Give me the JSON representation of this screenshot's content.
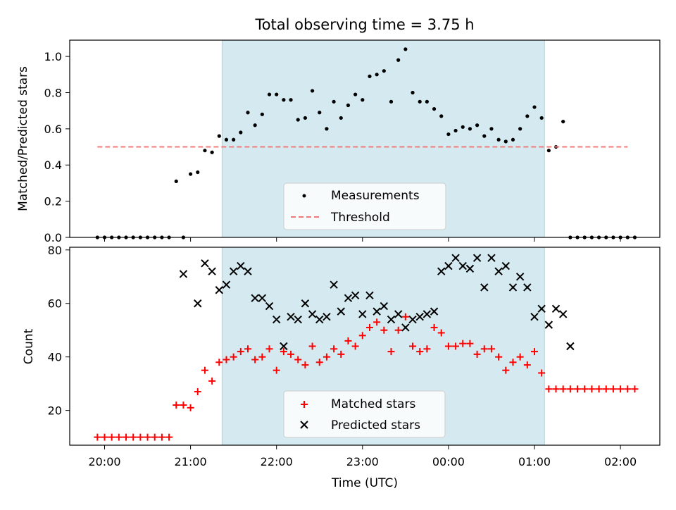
{
  "figure": {
    "title": "Total observing time = 3.75 h",
    "xlabel": "Time (UTC)",
    "x_ticks": [
      "20:00",
      "21:00",
      "22:00",
      "23:00",
      "00:00",
      "01:00",
      "02:00"
    ],
    "shade_color": "#d4eaf0",
    "shade_range": [
      "21:22",
      "01:07"
    ]
  },
  "chart_data": [
    {
      "type": "scatter",
      "ylabel": "Matched/Predicted stars",
      "ylim": [
        0,
        1.09
      ],
      "y_ticks": [
        "0.0",
        "0.2",
        "0.4",
        "0.6",
        "0.8",
        "1.0"
      ],
      "legend_placement": "lower center",
      "series": [
        {
          "name": "Measurements",
          "color": "#000000",
          "marker": "dot",
          "x": [
            "19:55",
            "20:00",
            "20:05",
            "20:10",
            "20:15",
            "20:20",
            "20:25",
            "20:30",
            "20:35",
            "20:40",
            "20:45",
            "20:50",
            "20:55",
            "21:00",
            "21:05",
            "21:10",
            "21:15",
            "21:20",
            "21:25",
            "21:30",
            "21:35",
            "21:40",
            "21:45",
            "21:50",
            "21:55",
            "22:00",
            "22:05",
            "22:10",
            "22:15",
            "22:20",
            "22:25",
            "22:30",
            "22:35",
            "22:40",
            "22:45",
            "22:50",
            "22:55",
            "23:00",
            "23:05",
            "23:10",
            "23:15",
            "23:20",
            "23:25",
            "23:30",
            "23:35",
            "23:40",
            "23:45",
            "23:50",
            "23:55",
            "00:00",
            "00:05",
            "00:10",
            "00:15",
            "00:20",
            "00:25",
            "00:30",
            "00:35",
            "00:40",
            "00:45",
            "00:50",
            "00:55",
            "01:00",
            "01:05",
            "01:10",
            "01:15",
            "01:20",
            "01:25",
            "01:30",
            "01:35",
            "01:40",
            "01:45",
            "01:50",
            "01:55",
            "02:00",
            "02:05",
            "02:10"
          ],
          "y": [
            0,
            0,
            0,
            0,
            0,
            0,
            0,
            0,
            0,
            0,
            0,
            0.31,
            0,
            0.35,
            0.36,
            0.48,
            0.47,
            0.56,
            0.54,
            0.54,
            0.58,
            0.69,
            0.62,
            0.68,
            0.79,
            0.79,
            0.76,
            0.76,
            0.65,
            0.66,
            0.81,
            0.69,
            0.6,
            0.75,
            0.66,
            0.73,
            0.79,
            0.76,
            0.89,
            0.9,
            0.92,
            0.75,
            0.98,
            1.04,
            0.8,
            0.75,
            0.75,
            0.71,
            0.67,
            0.57,
            0.59,
            0.61,
            0.6,
            0.62,
            0.56,
            0.6,
            0.54,
            0.53,
            0.54,
            0.6,
            0.67,
            0.72,
            0.66,
            0.48,
            0.5,
            0.64,
            0,
            0,
            0,
            0,
            0,
            0,
            0,
            0,
            0,
            0
          ]
        },
        {
          "name": "Threshold",
          "color": "#f07a7a",
          "style": "dashed",
          "x": [
            "19:55",
            "02:05"
          ],
          "y": [
            0.5,
            0.5
          ]
        }
      ]
    },
    {
      "type": "scatter",
      "ylabel": "Count",
      "ylim": [
        7,
        81
      ],
      "y_ticks": [
        "20",
        "40",
        "60",
        "80"
      ],
      "legend_placement": "lower center",
      "series": [
        {
          "name": "Matched stars",
          "color": "#ff0000",
          "marker": "plus",
          "x": [
            "19:55",
            "20:00",
            "20:05",
            "20:10",
            "20:15",
            "20:20",
            "20:25",
            "20:30",
            "20:35",
            "20:40",
            "20:45",
            "20:50",
            "20:55",
            "21:00",
            "21:05",
            "21:10",
            "21:15",
            "21:20",
            "21:25",
            "21:30",
            "21:35",
            "21:40",
            "21:45",
            "21:50",
            "21:55",
            "22:00",
            "22:05",
            "22:10",
            "22:15",
            "22:20",
            "22:25",
            "22:30",
            "22:35",
            "22:40",
            "22:45",
            "22:50",
            "22:55",
            "23:00",
            "23:05",
            "23:10",
            "23:15",
            "23:20",
            "23:25",
            "23:30",
            "23:35",
            "23:40",
            "23:45",
            "23:50",
            "23:55",
            "00:00",
            "00:05",
            "00:10",
            "00:15",
            "00:20",
            "00:25",
            "00:30",
            "00:35",
            "00:40",
            "00:45",
            "00:50",
            "00:55",
            "01:00",
            "01:05",
            "01:10",
            "01:15",
            "01:20",
            "01:25",
            "01:30",
            "01:35",
            "01:40",
            "01:45",
            "01:50",
            "01:55",
            "02:00",
            "02:05",
            "02:10"
          ],
          "y": [
            10,
            10,
            10,
            10,
            10,
            10,
            10,
            10,
            10,
            10,
            10,
            22,
            22,
            21,
            27,
            35,
            31,
            38,
            39,
            40,
            42,
            43,
            39,
            40,
            43,
            35,
            42,
            41,
            39,
            37,
            44,
            38,
            40,
            43,
            41,
            46,
            44,
            48,
            51,
            53,
            50,
            42,
            50,
            55,
            44,
            42,
            43,
            51,
            49,
            44,
            44,
            45,
            45,
            41,
            43,
            43,
            40,
            35,
            38,
            40,
            37,
            42,
            34,
            28,
            28,
            28,
            28,
            28,
            28,
            28,
            28,
            28,
            28,
            28,
            28,
            28
          ]
        },
        {
          "name": "Predicted stars",
          "color": "#000000",
          "marker": "x",
          "x": [
            "20:55",
            "21:05",
            "21:10",
            "21:15",
            "21:20",
            "21:25",
            "21:30",
            "21:35",
            "21:40",
            "21:45",
            "21:50",
            "21:55",
            "22:00",
            "22:05",
            "22:10",
            "22:15",
            "22:20",
            "22:25",
            "22:30",
            "22:35",
            "22:40",
            "22:45",
            "22:50",
            "22:55",
            "23:00",
            "23:05",
            "23:10",
            "23:15",
            "23:20",
            "23:25",
            "23:30",
            "23:35",
            "23:40",
            "23:45",
            "23:50",
            "23:55",
            "00:00",
            "00:05",
            "00:10",
            "00:15",
            "00:20",
            "00:25",
            "00:30",
            "00:35",
            "00:40",
            "00:45",
            "00:50",
            "00:55",
            "01:00",
            "01:05",
            "01:10",
            "01:15",
            "01:20",
            "01:25"
          ],
          "y": [
            71,
            60,
            75,
            72,
            65,
            67,
            72,
            74,
            72,
            62,
            62,
            59,
            54,
            44,
            55,
            54,
            60,
            56,
            54,
            55,
            67,
            57,
            62,
            63,
            56,
            63,
            57,
            59,
            54,
            56,
            51,
            54,
            55,
            56,
            57,
            72,
            74,
            77,
            74,
            73,
            77,
            66,
            77,
            72,
            74,
            66,
            70,
            66,
            55,
            58,
            52,
            58,
            56,
            44
          ]
        }
      ]
    }
  ]
}
